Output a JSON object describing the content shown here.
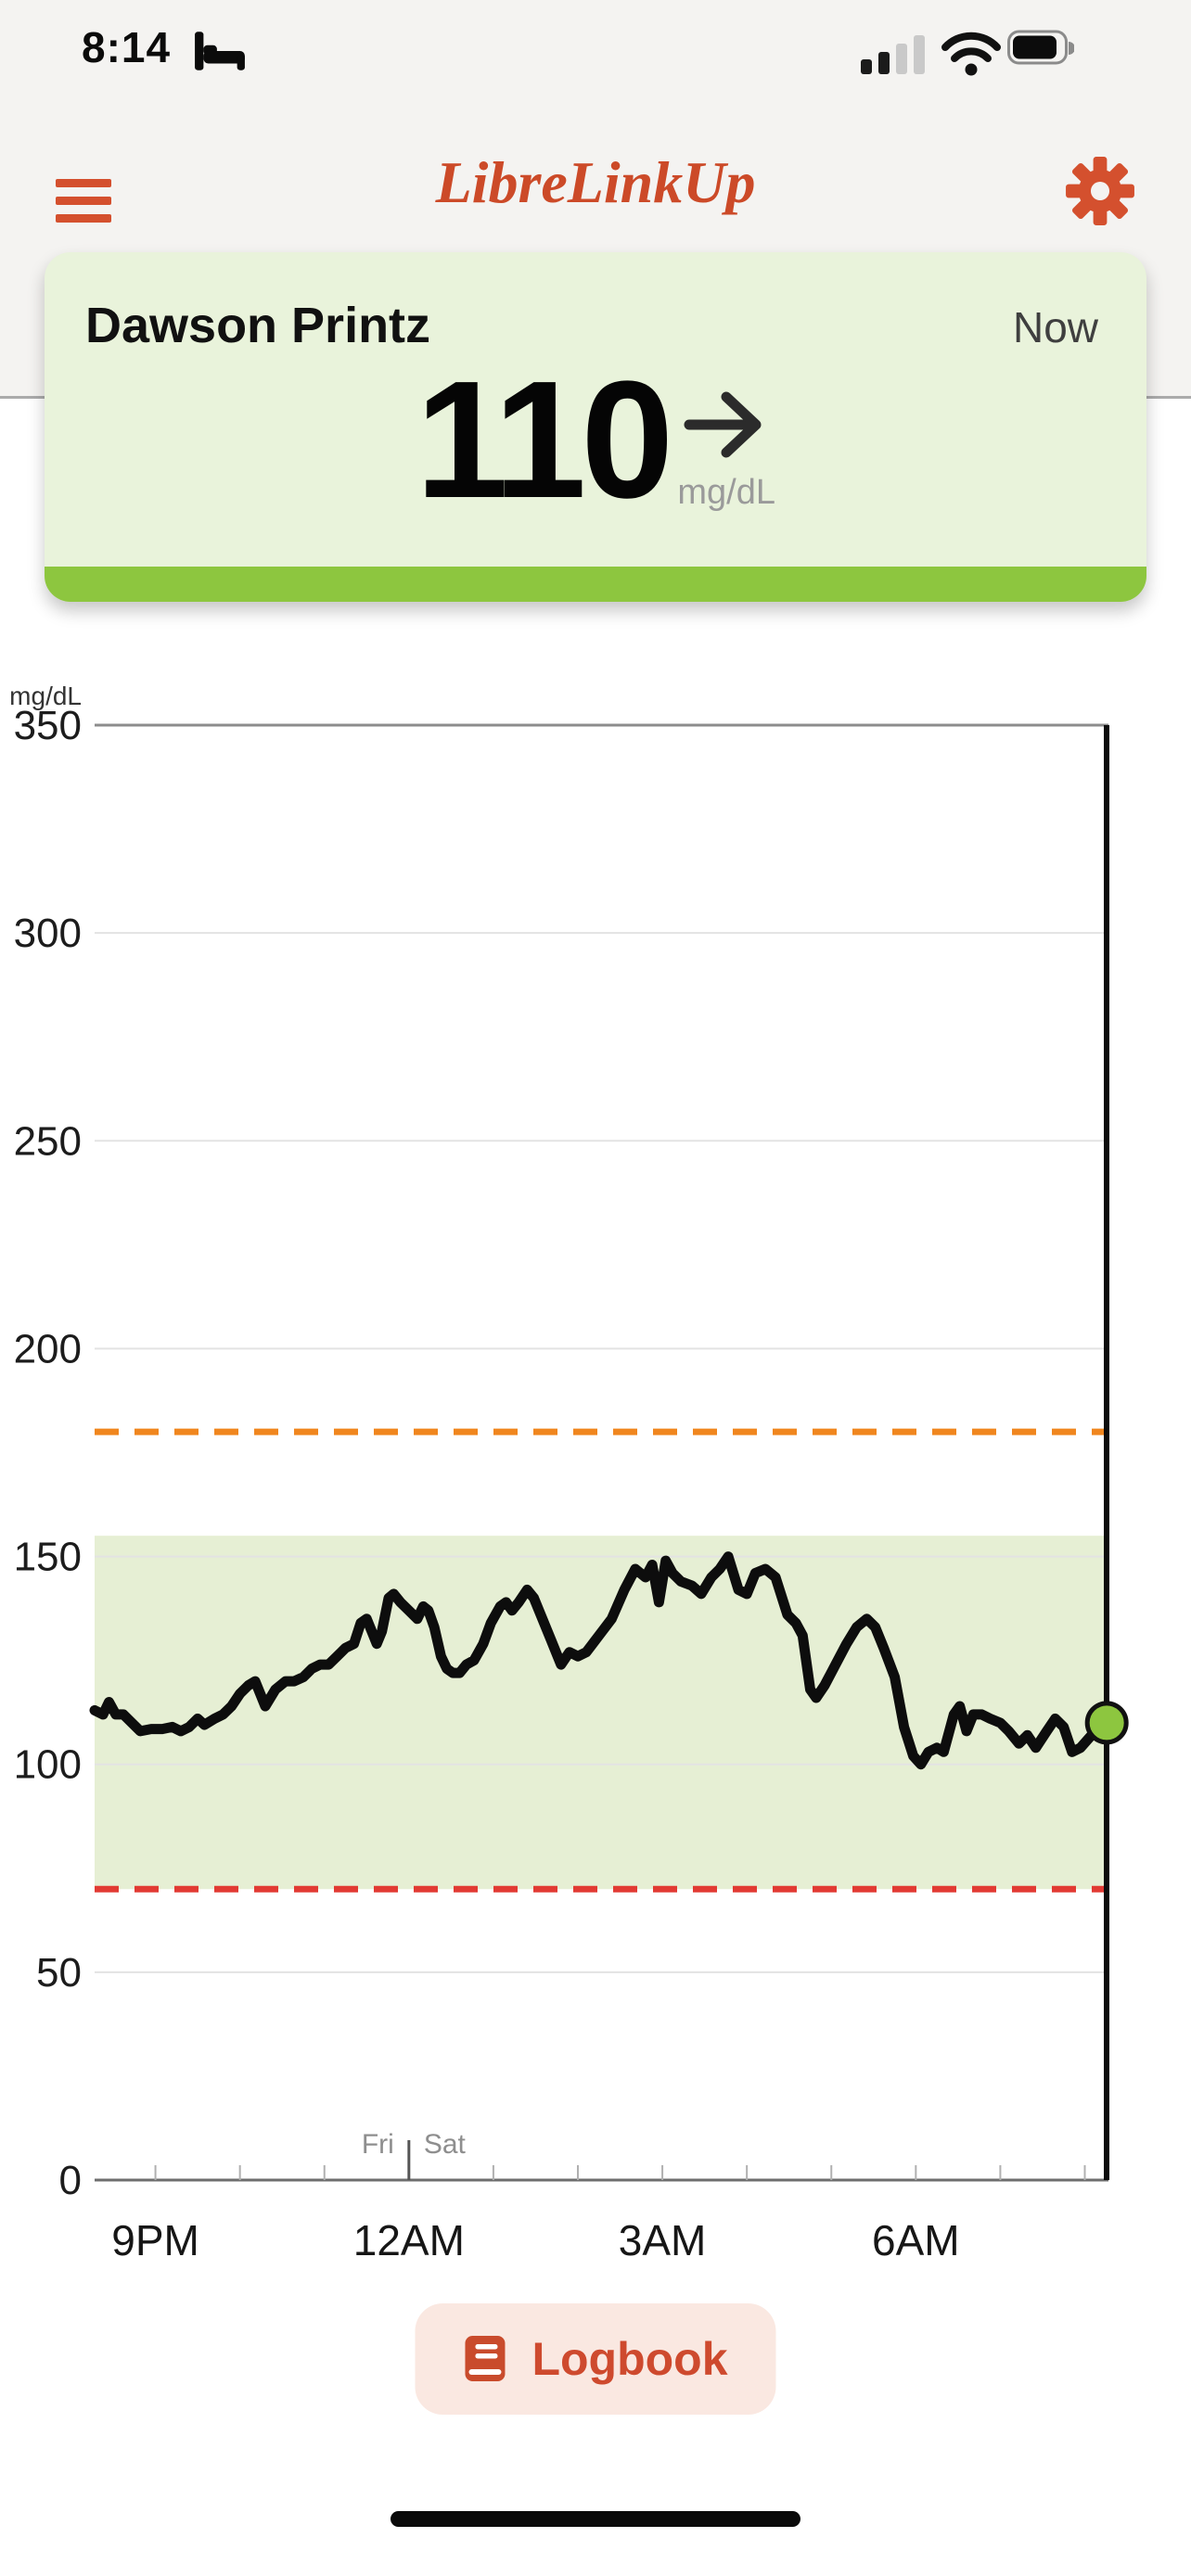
{
  "status_bar": {
    "time": "8:14",
    "bed_icon": "sleep-mode",
    "cellular_bars_filled": 2,
    "cellular_bars_total": 4,
    "battery_fill": 0.88
  },
  "header": {
    "title": "LibreLinkUp",
    "menu_icon": "hamburger-menu",
    "settings_icon": "gear"
  },
  "patient_card": {
    "name": "Dawson Printz",
    "now_label": "Now",
    "value": "110",
    "unit": "mg/dL",
    "trend_icon": "arrow-right-steady",
    "status_strip_color": "#8DC63F"
  },
  "chart_data": {
    "type": "line",
    "ylabel": "mg/dL",
    "ylim": [
      0,
      350
    ],
    "yticks": [
      350,
      300,
      250,
      200,
      150,
      100,
      50,
      0
    ],
    "x_start_hour": -3.72,
    "x_span_hours": 12,
    "x_hour_labels": [
      {
        "hour": -3,
        "label": "9PM"
      },
      {
        "hour": 0,
        "label": "12AM"
      },
      {
        "hour": 3,
        "label": "3AM"
      },
      {
        "hour": 6,
        "label": "6AM"
      }
    ],
    "day_boundary": {
      "hour": 0,
      "left_label": "Fri",
      "right_label": "Sat"
    },
    "high_threshold": 180,
    "low_threshold": 70,
    "target_range": [
      70,
      155
    ],
    "grid": true,
    "legend": false,
    "now_point": {
      "hour": 8.26,
      "value": 110
    },
    "series": [
      [
        -3.72,
        113
      ],
      [
        -3.62,
        112
      ],
      [
        -3.55,
        115
      ],
      [
        -3.47,
        112
      ],
      [
        -3.38,
        112
      ],
      [
        -3.28,
        110
      ],
      [
        -3.18,
        108
      ],
      [
        -3.05,
        108.5
      ],
      [
        -2.92,
        108.5
      ],
      [
        -2.8,
        109
      ],
      [
        -2.7,
        108
      ],
      [
        -2.6,
        109
      ],
      [
        -2.5,
        111
      ],
      [
        -2.42,
        109.5
      ],
      [
        -2.3,
        111
      ],
      [
        -2.2,
        112
      ],
      [
        -2.1,
        114
      ],
      [
        -2.0,
        117
      ],
      [
        -1.9,
        119
      ],
      [
        -1.82,
        120
      ],
      [
        -1.7,
        114
      ],
      [
        -1.58,
        118
      ],
      [
        -1.46,
        120
      ],
      [
        -1.36,
        120
      ],
      [
        -1.25,
        121
      ],
      [
        -1.15,
        123
      ],
      [
        -1.05,
        124
      ],
      [
        -0.95,
        124
      ],
      [
        -0.85,
        126
      ],
      [
        -0.75,
        128
      ],
      [
        -0.65,
        129
      ],
      [
        -0.57,
        134
      ],
      [
        -0.5,
        135
      ],
      [
        -0.44,
        132
      ],
      [
        -0.38,
        129
      ],
      [
        -0.32,
        132
      ],
      [
        -0.24,
        140
      ],
      [
        -0.18,
        141
      ],
      [
        -0.1,
        139
      ],
      [
        0.0,
        137
      ],
      [
        0.1,
        135
      ],
      [
        0.17,
        138
      ],
      [
        0.23,
        137
      ],
      [
        0.3,
        133
      ],
      [
        0.38,
        126
      ],
      [
        0.45,
        123
      ],
      [
        0.52,
        122
      ],
      [
        0.6,
        122
      ],
      [
        0.68,
        124
      ],
      [
        0.77,
        125
      ],
      [
        0.88,
        129
      ],
      [
        0.97,
        134
      ],
      [
        1.08,
        138
      ],
      [
        1.15,
        139
      ],
      [
        1.22,
        137
      ],
      [
        1.3,
        139
      ],
      [
        1.4,
        142
      ],
      [
        1.48,
        140
      ],
      [
        1.56,
        136
      ],
      [
        1.68,
        130
      ],
      [
        1.8,
        124
      ],
      [
        1.9,
        127
      ],
      [
        2.0,
        126
      ],
      [
        2.1,
        127
      ],
      [
        2.25,
        131
      ],
      [
        2.4,
        135
      ],
      [
        2.55,
        142
      ],
      [
        2.68,
        147
      ],
      [
        2.8,
        145
      ],
      [
        2.88,
        148
      ],
      [
        2.96,
        139
      ],
      [
        3.04,
        149
      ],
      [
        3.12,
        146
      ],
      [
        3.22,
        144
      ],
      [
        3.35,
        143
      ],
      [
        3.46,
        141
      ],
      [
        3.58,
        145
      ],
      [
        3.68,
        147
      ],
      [
        3.78,
        150
      ],
      [
        3.9,
        142
      ],
      [
        4.0,
        141
      ],
      [
        4.1,
        146
      ],
      [
        4.22,
        147
      ],
      [
        4.34,
        145
      ],
      [
        4.48,
        136
      ],
      [
        4.58,
        134
      ],
      [
        4.66,
        131
      ],
      [
        4.75,
        118
      ],
      [
        4.82,
        116
      ],
      [
        4.92,
        119
      ],
      [
        5.05,
        124
      ],
      [
        5.18,
        129
      ],
      [
        5.3,
        133
      ],
      [
        5.42,
        135
      ],
      [
        5.52,
        133
      ],
      [
        5.62,
        128
      ],
      [
        5.75,
        121
      ],
      [
        5.86,
        109
      ],
      [
        5.97,
        102
      ],
      [
        6.06,
        100
      ],
      [
        6.15,
        103
      ],
      [
        6.25,
        104
      ],
      [
        6.33,
        103
      ],
      [
        6.45,
        112
      ],
      [
        6.52,
        114
      ],
      [
        6.6,
        108
      ],
      [
        6.68,
        112
      ],
      [
        6.78,
        112
      ],
      [
        6.88,
        111
      ],
      [
        7.0,
        110
      ],
      [
        7.1,
        108
      ],
      [
        7.22,
        105
      ],
      [
        7.32,
        107
      ],
      [
        7.42,
        104
      ],
      [
        7.55,
        108
      ],
      [
        7.65,
        111
      ],
      [
        7.75,
        109
      ],
      [
        7.85,
        103
      ],
      [
        7.95,
        104
      ],
      [
        8.08,
        107
      ],
      [
        8.2,
        109
      ],
      [
        8.26,
        110
      ]
    ]
  },
  "logbook_button": {
    "label": "Logbook",
    "icon": "book"
  },
  "colors": {
    "accent": "#D4502E",
    "title": "#CC4A28",
    "green": "#8DC63F",
    "card_bg": "#E9F3DB",
    "band_bg": "#E6EFD4",
    "high_line": "#F0861E",
    "low_line": "#E23A33",
    "grid_light": "#E3E3E3",
    "grid_dark": "#8C8C8C",
    "axis_dark": "#6E6E6E",
    "curve": "#0D0D0D",
    "button_bg": "#FAE8E1"
  }
}
